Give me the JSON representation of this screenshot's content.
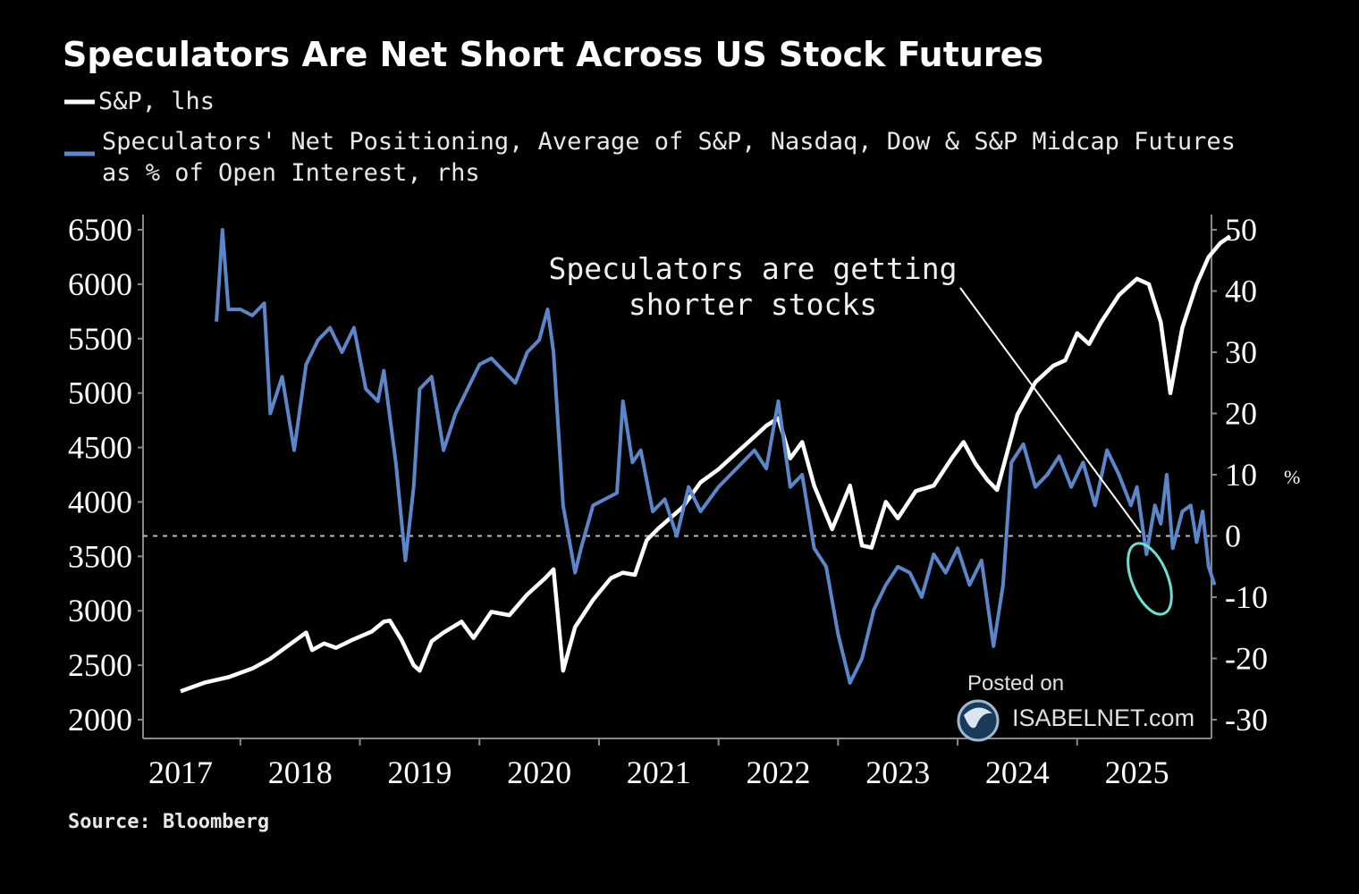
{
  "chart_data": {
    "type": "line",
    "title": "Speculators Are Net Short Across US Stock Futures",
    "legend": [
      {
        "label": "S&P, lhs",
        "color": "#ffffff"
      },
      {
        "label_line1": "Speculators' Net Positioning, Average of S&P, Nasdaq, Dow & S&P Midcap Futures",
        "label_line2": "as % of Open Interest, rhs",
        "color": "#5b86c9"
      }
    ],
    "x_ticks": [
      "2017",
      "2018",
      "2019",
      "2020",
      "2021",
      "2022",
      "2023",
      "2024",
      "2025"
    ],
    "xlim": [
      2017.0,
      2025.9
    ],
    "y_left": {
      "ticks": [
        6500,
        6000,
        5500,
        5000,
        4500,
        4000,
        3500,
        3000,
        2500,
        2000
      ],
      "ylim": [
        2000,
        6500
      ]
    },
    "y_right": {
      "ticks": [
        50,
        40,
        30,
        20,
        10,
        0,
        -10,
        -20,
        -30
      ],
      "tick_labels": [
        "50",
        "40",
        "30",
        "20",
        "10",
        "0",
        "-10",
        "-20",
        "-30"
      ],
      "ylim": [
        -30,
        50
      ],
      "unit": "%"
    },
    "zero_line": 0,
    "annotation": {
      "line1": "Speculators are getting",
      "line2": "shorter stocks",
      "arrow_from": [
        2024.0,
        37
      ],
      "arrow_to": [
        2025.0,
        0
      ]
    },
    "highlight": {
      "x": 2025.1,
      "y": -7,
      "color": "#6fe0d0"
    },
    "source": "Source: Bloomberg",
    "watermark": {
      "line1": "Posted on",
      "line2": "ISABELNET.com"
    },
    "series": [
      {
        "name": "S&P",
        "axis": "left",
        "color": "#ffffff",
        "points": [
          [
            2017.0,
            2260
          ],
          [
            2017.2,
            2340
          ],
          [
            2017.4,
            2390
          ],
          [
            2017.6,
            2470
          ],
          [
            2017.75,
            2560
          ],
          [
            2017.9,
            2680
          ],
          [
            2018.05,
            2800
          ],
          [
            2018.1,
            2640
          ],
          [
            2018.2,
            2700
          ],
          [
            2018.3,
            2660
          ],
          [
            2018.45,
            2740
          ],
          [
            2018.6,
            2810
          ],
          [
            2018.7,
            2900
          ],
          [
            2018.75,
            2910
          ],
          [
            2018.85,
            2730
          ],
          [
            2018.95,
            2500
          ],
          [
            2019.0,
            2450
          ],
          [
            2019.1,
            2720
          ],
          [
            2019.2,
            2800
          ],
          [
            2019.35,
            2900
          ],
          [
            2019.45,
            2750
          ],
          [
            2019.6,
            2990
          ],
          [
            2019.75,
            2960
          ],
          [
            2019.9,
            3150
          ],
          [
            2020.05,
            3300
          ],
          [
            2020.12,
            3380
          ],
          [
            2020.2,
            2450
          ],
          [
            2020.3,
            2850
          ],
          [
            2020.45,
            3100
          ],
          [
            2020.6,
            3300
          ],
          [
            2020.7,
            3350
          ],
          [
            2020.8,
            3330
          ],
          [
            2020.9,
            3650
          ],
          [
            2021.0,
            3760
          ],
          [
            2021.2,
            3950
          ],
          [
            2021.35,
            4180
          ],
          [
            2021.5,
            4300
          ],
          [
            2021.65,
            4450
          ],
          [
            2021.8,
            4600
          ],
          [
            2021.9,
            4700
          ],
          [
            2022.0,
            4770
          ],
          [
            2022.1,
            4400
          ],
          [
            2022.2,
            4550
          ],
          [
            2022.3,
            4150
          ],
          [
            2022.45,
            3750
          ],
          [
            2022.6,
            4150
          ],
          [
            2022.7,
            3600
          ],
          [
            2022.78,
            3580
          ],
          [
            2022.9,
            4000
          ],
          [
            2023.0,
            3850
          ],
          [
            2023.15,
            4100
          ],
          [
            2023.3,
            4150
          ],
          [
            2023.45,
            4400
          ],
          [
            2023.55,
            4550
          ],
          [
            2023.65,
            4350
          ],
          [
            2023.75,
            4200
          ],
          [
            2023.83,
            4110
          ],
          [
            2024.0,
            4800
          ],
          [
            2024.15,
            5100
          ],
          [
            2024.3,
            5250
          ],
          [
            2024.4,
            5300
          ],
          [
            2024.5,
            5550
          ],
          [
            2024.6,
            5450
          ],
          [
            2024.7,
            5650
          ],
          [
            2024.85,
            5900
          ],
          [
            2025.0,
            6050
          ],
          [
            2025.1,
            6000
          ],
          [
            2025.2,
            5650
          ],
          [
            2025.28,
            5000
          ],
          [
            2025.38,
            5600
          ],
          [
            2025.5,
            6000
          ],
          [
            2025.6,
            6250
          ],
          [
            2025.7,
            6380
          ],
          [
            2025.78,
            6440
          ]
        ]
      },
      {
        "name": "Speculators' Net Positioning",
        "axis": "right",
        "color": "#5b86c9",
        "points": [
          [
            2017.3,
            35
          ],
          [
            2017.35,
            50
          ],
          [
            2017.4,
            37
          ],
          [
            2017.5,
            37
          ],
          [
            2017.6,
            36
          ],
          [
            2017.7,
            38
          ],
          [
            2017.75,
            20
          ],
          [
            2017.85,
            26
          ],
          [
            2017.95,
            14
          ],
          [
            2018.05,
            28
          ],
          [
            2018.15,
            32
          ],
          [
            2018.25,
            34
          ],
          [
            2018.35,
            30
          ],
          [
            2018.45,
            34
          ],
          [
            2018.55,
            24
          ],
          [
            2018.65,
            22
          ],
          [
            2018.7,
            27
          ],
          [
            2018.8,
            12
          ],
          [
            2018.88,
            -4
          ],
          [
            2018.95,
            8
          ],
          [
            2019.0,
            24
          ],
          [
            2019.1,
            26
          ],
          [
            2019.2,
            14
          ],
          [
            2019.3,
            20
          ],
          [
            2019.4,
            24
          ],
          [
            2019.5,
            28
          ],
          [
            2019.6,
            29
          ],
          [
            2019.7,
            27
          ],
          [
            2019.8,
            25
          ],
          [
            2019.9,
            30
          ],
          [
            2020.0,
            32
          ],
          [
            2020.07,
            37
          ],
          [
            2020.12,
            30
          ],
          [
            2020.2,
            5
          ],
          [
            2020.3,
            -6
          ],
          [
            2020.35,
            -2
          ],
          [
            2020.45,
            5
          ],
          [
            2020.55,
            6
          ],
          [
            2020.65,
            7
          ],
          [
            2020.7,
            22
          ],
          [
            2020.78,
            12
          ],
          [
            2020.85,
            14
          ],
          [
            2020.95,
            4
          ],
          [
            2021.05,
            6
          ],
          [
            2021.15,
            0
          ],
          [
            2021.25,
            8
          ],
          [
            2021.35,
            4
          ],
          [
            2021.5,
            8
          ],
          [
            2021.6,
            10
          ],
          [
            2021.7,
            12
          ],
          [
            2021.8,
            14
          ],
          [
            2021.9,
            11
          ],
          [
            2022.0,
            22
          ],
          [
            2022.1,
            8
          ],
          [
            2022.2,
            10
          ],
          [
            2022.3,
            -2
          ],
          [
            2022.4,
            -5
          ],
          [
            2022.5,
            -16
          ],
          [
            2022.6,
            -24
          ],
          [
            2022.7,
            -20
          ],
          [
            2022.8,
            -12
          ],
          [
            2022.9,
            -8
          ],
          [
            2023.0,
            -5
          ],
          [
            2023.1,
            -6
          ],
          [
            2023.2,
            -10
          ],
          [
            2023.3,
            -3
          ],
          [
            2023.4,
            -6
          ],
          [
            2023.5,
            -2
          ],
          [
            2023.6,
            -8
          ],
          [
            2023.7,
            -4
          ],
          [
            2023.8,
            -18
          ],
          [
            2023.88,
            -8
          ],
          [
            2023.95,
            12
          ],
          [
            2024.05,
            15
          ],
          [
            2024.15,
            8
          ],
          [
            2024.25,
            10
          ],
          [
            2024.35,
            13
          ],
          [
            2024.45,
            8
          ],
          [
            2024.55,
            12
          ],
          [
            2024.65,
            5
          ],
          [
            2024.75,
            14
          ],
          [
            2024.85,
            10
          ],
          [
            2024.95,
            5
          ],
          [
            2025.0,
            8
          ],
          [
            2025.08,
            -3
          ],
          [
            2025.15,
            5
          ],
          [
            2025.2,
            2
          ],
          [
            2025.25,
            10
          ],
          [
            2025.3,
            -2
          ],
          [
            2025.38,
            4
          ],
          [
            2025.45,
            5
          ],
          [
            2025.5,
            -1
          ],
          [
            2025.55,
            4
          ],
          [
            2025.6,
            -5
          ],
          [
            2025.65,
            -8
          ]
        ]
      }
    ]
  }
}
